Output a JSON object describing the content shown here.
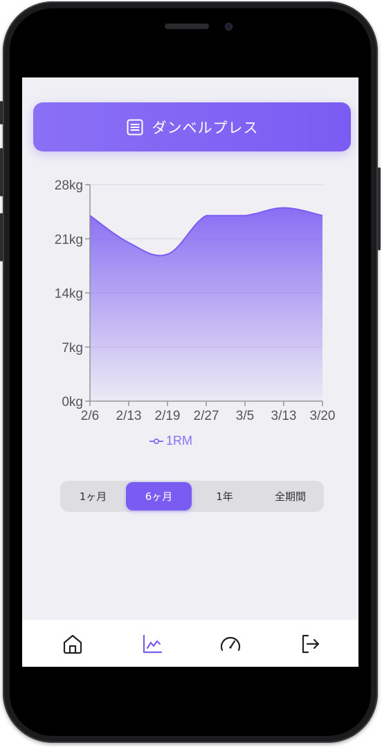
{
  "header": {
    "exercise_name": "ダンベルプレス",
    "exercise_icon": "list-icon",
    "accent_color": "#7b5cf3"
  },
  "chart_data": {
    "type": "area",
    "x": [
      "2/6",
      "2/13",
      "2/19",
      "2/27",
      "3/5",
      "3/13",
      "3/20"
    ],
    "series": [
      {
        "name": "1RM",
        "values": [
          24,
          20.5,
          19,
          24,
          24,
          25,
          24
        ]
      }
    ],
    "y_ticks": [
      "0kg",
      "7kg",
      "14kg",
      "21kg",
      "28kg"
    ],
    "ylim": [
      0,
      28
    ],
    "grid": true,
    "legend_position": "bottom-center",
    "series_color": "#7b5cf3"
  },
  "range_selector": {
    "options": [
      "1ヶ月",
      "6ヶ月",
      "1年",
      "全期間"
    ],
    "selected": "6ヶ月"
  },
  "tabbar": {
    "items": [
      {
        "icon": "home-icon",
        "active": false
      },
      {
        "icon": "chart-line-icon",
        "active": true
      },
      {
        "icon": "gauge-icon",
        "active": false
      },
      {
        "icon": "logout-icon",
        "active": false
      }
    ]
  }
}
